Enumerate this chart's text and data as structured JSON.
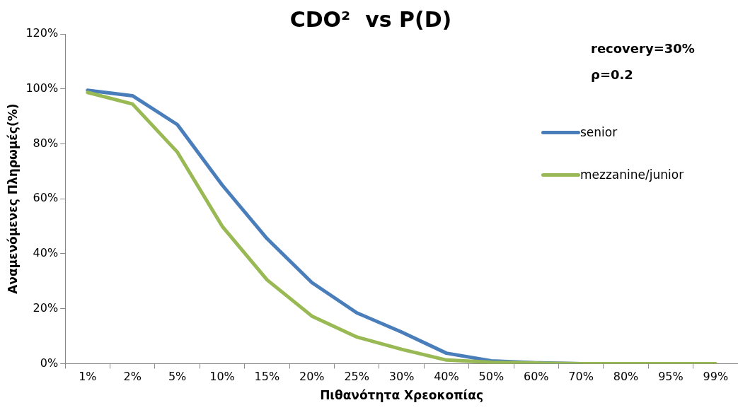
{
  "chart_data": {
    "type": "line",
    "title": "CDO²  vs P(D)",
    "xlabel": "Πιθανότητα Χρεοκοπίας",
    "ylabel": "Αναμενόμενες Πληρωμές(%)",
    "categories": [
      "1%",
      "2%",
      "5%",
      "10%",
      "15%",
      "20%",
      "25%",
      "30%",
      "40%",
      "50%",
      "60%",
      "70%",
      "80%",
      "95%",
      "99%"
    ],
    "series": [
      {
        "name": "senior",
        "color": "#4a7ebb",
        "values": [
          99.5,
          97.5,
          87,
          65,
          45.5,
          29.5,
          18.5,
          11.5,
          3.8,
          1,
          0.3,
          0,
          null,
          null,
          null
        ]
      },
      {
        "name": "mezzanine/junior",
        "color": "#98b954",
        "values": [
          98.7,
          94.5,
          77,
          50,
          30.5,
          17.3,
          9.7,
          5.2,
          1.3,
          0.5,
          0.2,
          0,
          0,
          0,
          0
        ]
      }
    ],
    "ylim": [
      0,
      120
    ],
    "yticks": [
      {
        "value": 0,
        "label": "0%"
      },
      {
        "value": 20,
        "label": "20%"
      },
      {
        "value": 40,
        "label": "40%"
      },
      {
        "value": 60,
        "label": "60%"
      },
      {
        "value": 80,
        "label": "80%"
      },
      {
        "value": 100,
        "label": "100%"
      },
      {
        "value": 120,
        "label": "120%"
      }
    ],
    "annotations": [
      "recovery=30%",
      "ρ=0.2"
    ],
    "grid": false,
    "legend": "right",
    "marker": "none",
    "line_style": "solid"
  }
}
